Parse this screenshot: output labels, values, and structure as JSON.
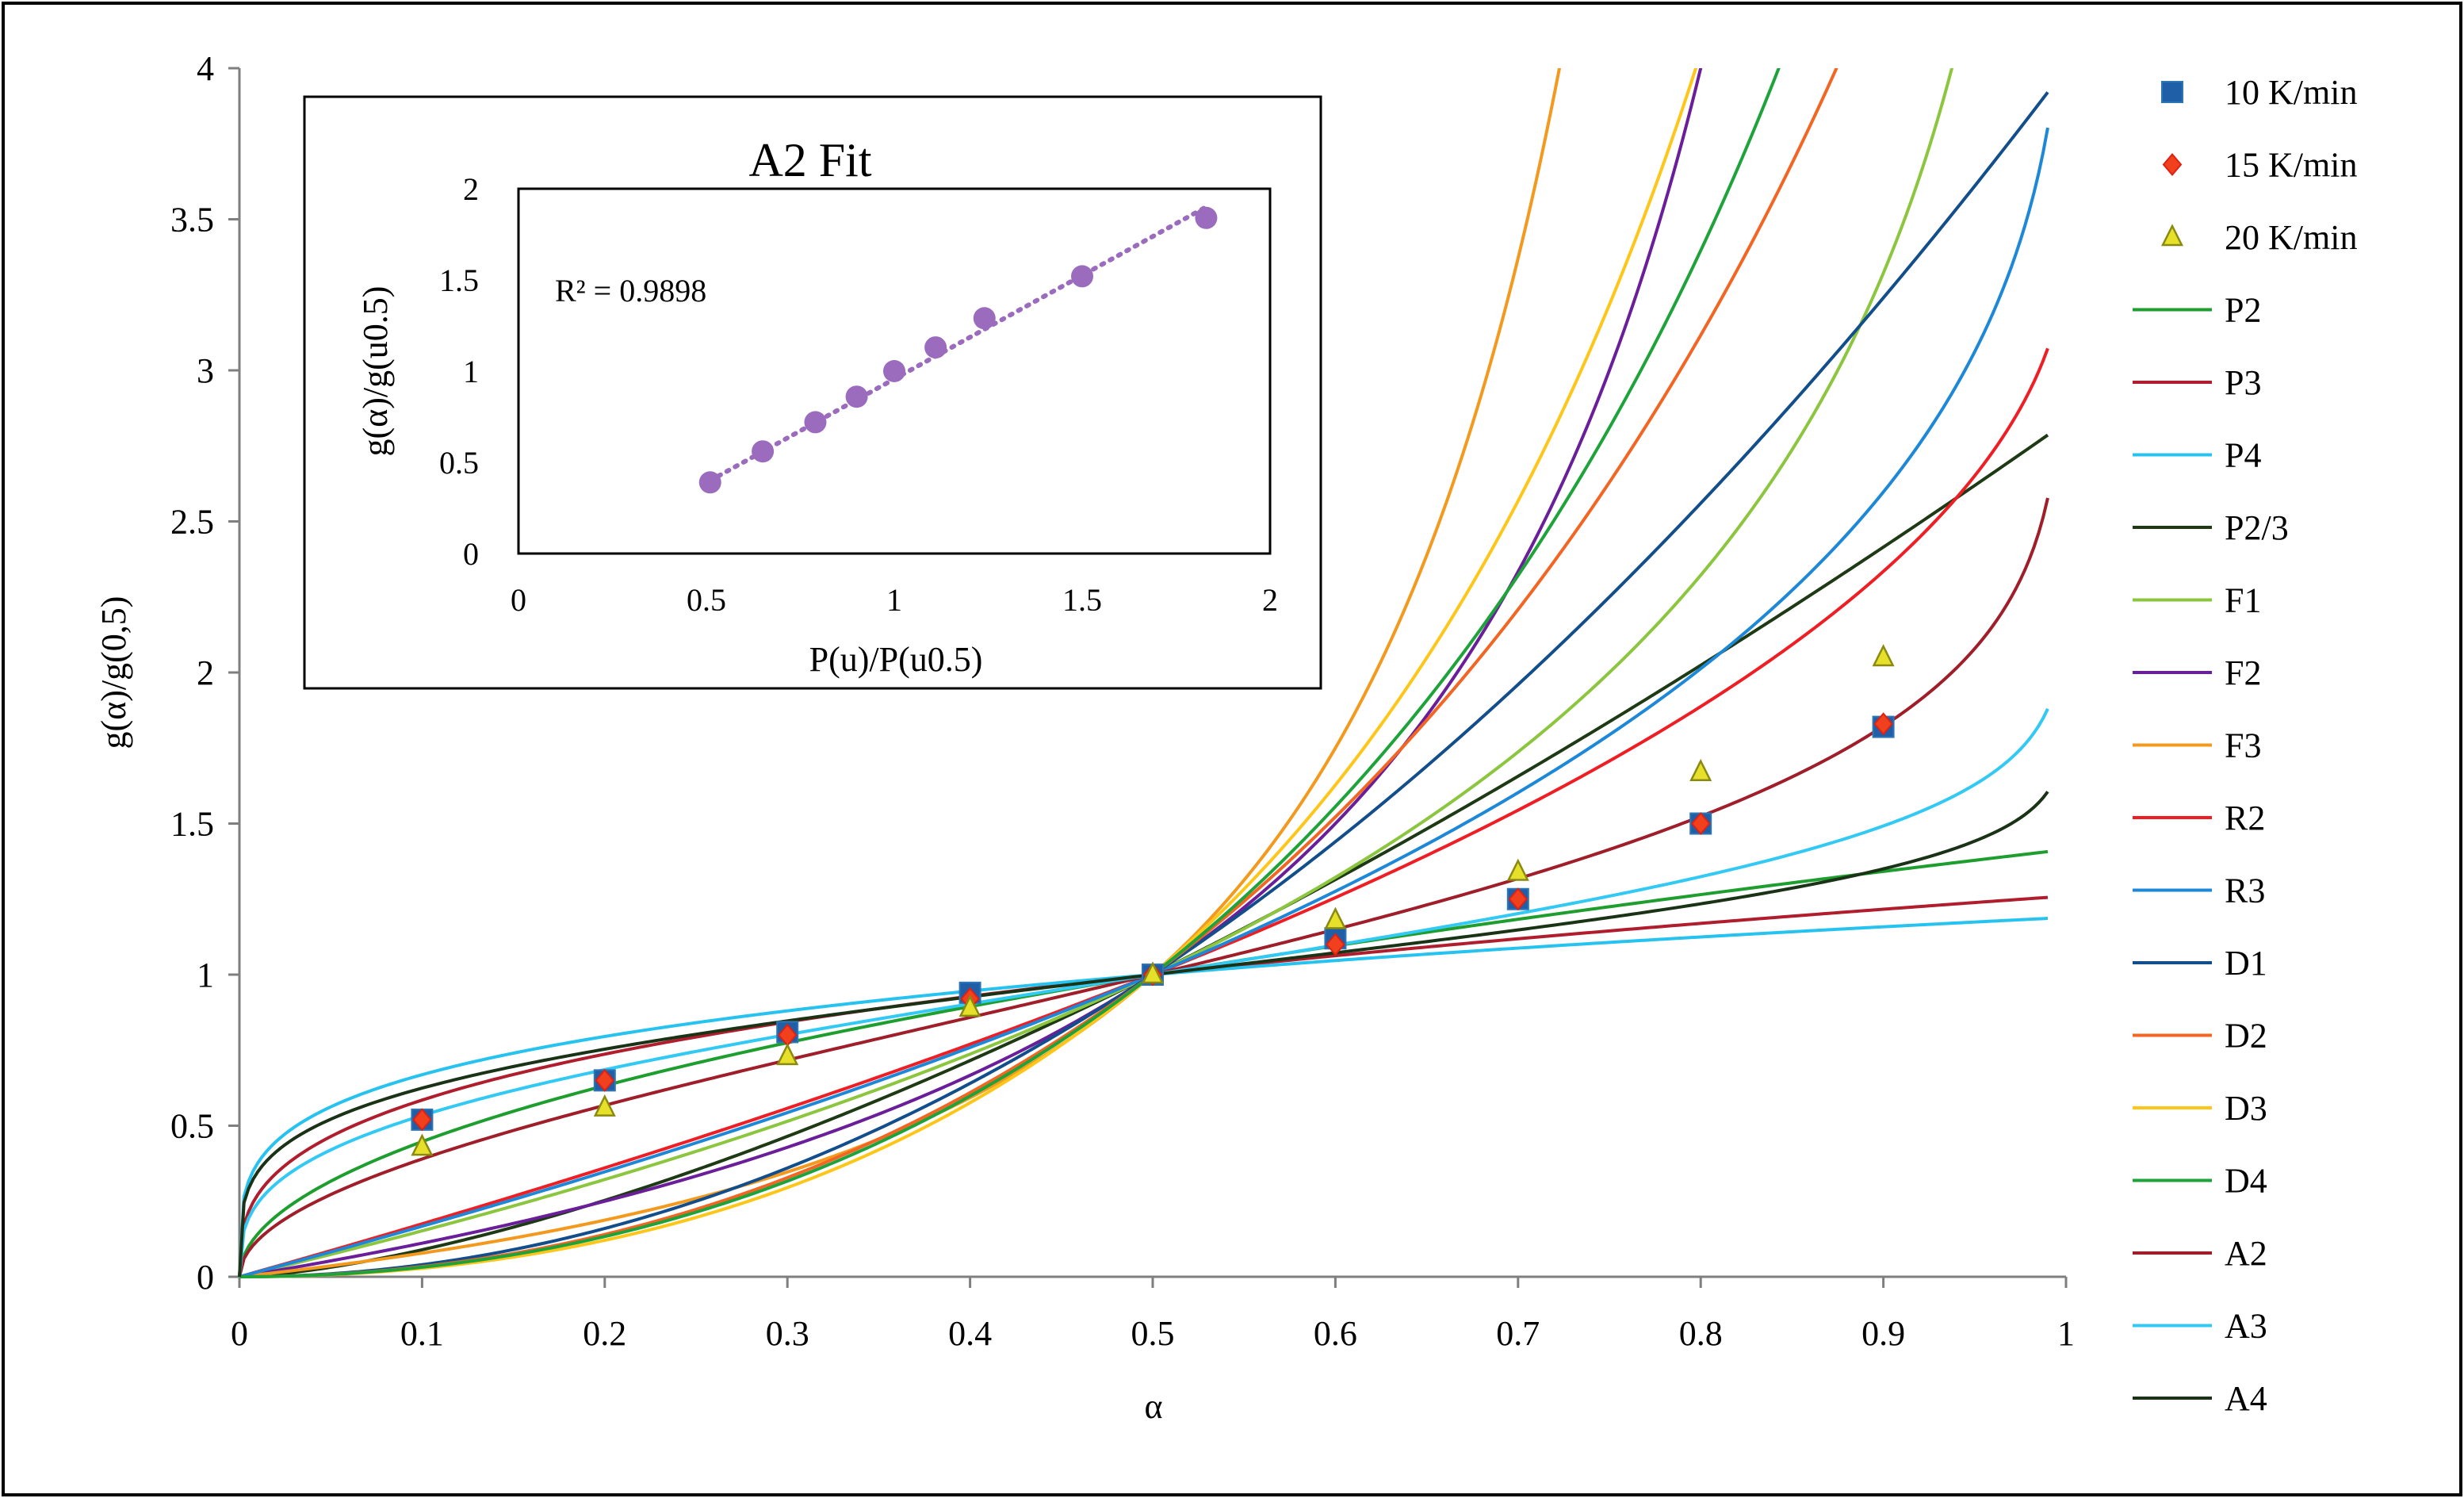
{
  "chart_data": [
    {
      "type": "line",
      "xlabel": "α",
      "ylabel": "g(α)/g(0,5)",
      "xlim": [
        0,
        1
      ],
      "ylim": [
        0,
        4
      ],
      "x_ticks": [
        "0",
        "0.1",
        "0.2",
        "0.3",
        "0.4",
        "0.5",
        "0.6",
        "0.7",
        "0.8",
        "0.9",
        "1"
      ],
      "y_ticks": [
        "0",
        "0.5",
        "1",
        "1.5",
        "2",
        "2.5",
        "3",
        "3.5",
        "4"
      ],
      "grid": false,
      "legend_position": "right",
      "scatter_series": [
        {
          "name": "10 K/min",
          "marker": "square",
          "color": "#1F5FA8",
          "edge": "#2E75B6",
          "x": [
            0.1,
            0.2,
            0.3,
            0.4,
            0.5,
            0.6,
            0.7,
            0.8,
            0.9
          ],
          "y": [
            0.52,
            0.65,
            0.81,
            0.94,
            1.0,
            1.12,
            1.25,
            1.5,
            1.82
          ]
        },
        {
          "name": "15 K/min",
          "marker": "diamond",
          "color": "#F0401E",
          "edge": "#E02010",
          "x": [
            0.1,
            0.2,
            0.3,
            0.4,
            0.5,
            0.6,
            0.7,
            0.8,
            0.9
          ],
          "y": [
            0.52,
            0.65,
            0.8,
            0.92,
            1.0,
            1.1,
            1.25,
            1.5,
            1.83
          ]
        },
        {
          "name": "20 K/min",
          "marker": "triangle",
          "color": "#E6E02A",
          "edge": "#8A8A10",
          "x": [
            0.1,
            0.2,
            0.3,
            0.4,
            0.5,
            0.6,
            0.7,
            0.8,
            0.9
          ],
          "y": [
            0.43,
            0.56,
            0.73,
            0.89,
            1.0,
            1.18,
            1.34,
            1.67,
            2.05
          ]
        }
      ],
      "line_series": [
        {
          "name": "P2",
          "color": "#1E9E2E",
          "model": "power",
          "n": 2
        },
        {
          "name": "P3",
          "color": "#B01E2E",
          "model": "power",
          "n": 3
        },
        {
          "name": "P4",
          "color": "#27C3F0",
          "model": "power",
          "n": 4
        },
        {
          "name": "P2/3",
          "color": "#1E3A14",
          "model": "power",
          "n": 0.6667
        },
        {
          "name": "F1",
          "color": "#8CC63F",
          "model": "F1"
        },
        {
          "name": "F2",
          "color": "#6A1E9A",
          "model": "F2"
        },
        {
          "name": "F3",
          "color": "#F39A1E",
          "model": "F3"
        },
        {
          "name": "R2",
          "color": "#EE1E24",
          "model": "R2"
        },
        {
          "name": "R3",
          "color": "#1E88D8",
          "model": "R3"
        },
        {
          "name": "D1",
          "color": "#134E8C",
          "model": "D1"
        },
        {
          "name": "D2",
          "color": "#F26522",
          "model": "D2"
        },
        {
          "name": "D3",
          "color": "#FFC61A",
          "model": "D3"
        },
        {
          "name": "D4",
          "color": "#1EA33A",
          "model": "D4"
        },
        {
          "name": "A2",
          "color": "#A01E2A",
          "model": "avrami",
          "n": 2
        },
        {
          "name": "A3",
          "color": "#33C9F5",
          "model": "avrami",
          "n": 3
        },
        {
          "name": "A4",
          "color": "#1A3316",
          "model": "avrami",
          "n": 4
        }
      ]
    },
    {
      "type": "scatter",
      "title": "A2 Fit",
      "xlabel": "P(u)/P(u0.5)",
      "ylabel": "g(α)/g(u0.5)",
      "xlim": [
        0,
        2
      ],
      "ylim": [
        0,
        2
      ],
      "x_ticks": [
        "0",
        "0.5",
        "1",
        "1.5",
        "2"
      ],
      "y_ticks": [
        "0",
        "0.5",
        "1",
        "1.5",
        "2"
      ],
      "annotation": "R² = 0.9898",
      "color": "#9B6BBE",
      "x": [
        0.51,
        0.65,
        0.79,
        0.9,
        1.0,
        1.11,
        1.24,
        1.5,
        1.83
      ],
      "y": [
        0.39,
        0.56,
        0.72,
        0.86,
        1.0,
        1.13,
        1.29,
        1.52,
        1.84
      ],
      "trendline": {
        "style": "dotted",
        "x": [
          0.51,
          1.83
        ],
        "y": [
          0.4,
          1.9
        ]
      }
    }
  ]
}
